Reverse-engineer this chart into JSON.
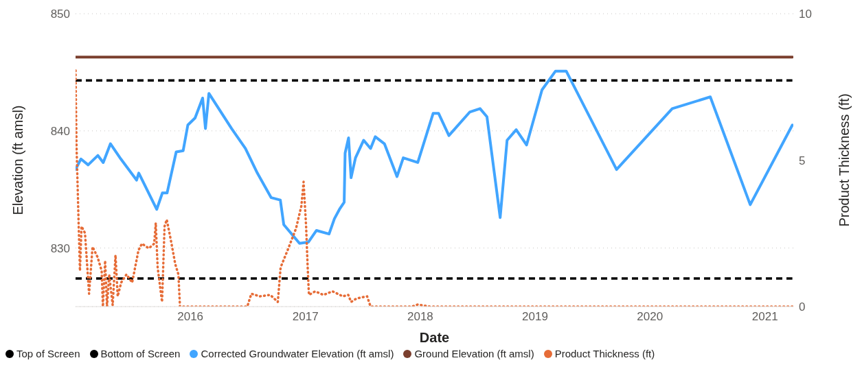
{
  "chart_data": {
    "type": "line",
    "xlabel": "Date",
    "ylabel": "Elevation (ft amsl)",
    "y2label": "Product Thickness (ft)",
    "xlim": [
      "2015-01-01",
      "2021-04-01"
    ],
    "xticks": [
      "2016",
      "2017",
      "2018",
      "2019",
      "2020",
      "2021"
    ],
    "ylim": [
      825,
      850
    ],
    "yticks": [
      830,
      840,
      850
    ],
    "y2lim": [
      0,
      10
    ],
    "y2ticks": [
      0,
      5,
      10
    ],
    "grid": "y",
    "legend": "bottom left",
    "series": [
      {
        "name": "Top of Screen",
        "color": "#000000",
        "line_style": "dashed",
        "x": [
          "2015-01-01",
          "2021-03-29"
        ],
        "values": [
          844.3,
          844.3
        ]
      },
      {
        "name": "Bottom of Screen",
        "color": "#000000",
        "line_style": "dashed",
        "x": [
          "2015-01-01",
          "2021-03-29"
        ],
        "values": [
          827.4,
          827.4
        ]
      },
      {
        "name": "Corrected Groundwater Elevation (ft amsl)",
        "color": "#41a5ff",
        "line_style": "solid",
        "x": [
          "2015-01-01",
          "2015-01-18",
          "2015-02-10",
          "2015-03-13",
          "2015-03-30",
          "2015-04-22",
          "2015-05-25",
          "2015-07-14",
          "2015-07-21",
          "2015-09-16",
          "2015-10-04",
          "2015-10-19",
          "2015-11-17",
          "2015-12-09",
          "2015-12-24",
          "2016-01-16",
          "2016-02-09",
          "2016-02-18",
          "2016-02-29",
          "2016-05-11",
          "2016-06-24",
          "2016-08-01",
          "2016-09-14",
          "2016-10-13",
          "2016-10-24",
          "2016-12-13",
          "2017-01-10",
          "2017-02-05",
          "2017-03-17",
          "2017-04-03",
          "2017-04-19",
          "2017-05-04",
          "2017-05-07",
          "2017-05-18",
          "2017-05-26",
          "2017-06-09",
          "2017-07-05",
          "2017-07-27",
          "2017-08-11",
          "2017-09-09",
          "2017-10-19",
          "2017-11-08",
          "2017-12-24",
          "2018-02-11",
          "2018-02-28",
          "2018-04-02",
          "2018-06-07",
          "2018-07-10",
          "2018-08-01",
          "2018-09-12",
          "2018-10-04",
          "2018-11-02",
          "2018-12-05",
          "2019-01-23",
          "2019-03-07",
          "2019-04-10",
          "2019-09-17",
          "2020-03-12",
          "2020-07-11",
          "2020-11-15",
          "2021-03-29"
        ],
        "values": [
          836.7,
          837.6,
          837.1,
          837.9,
          837.3,
          838.9,
          837.6,
          835.8,
          836.4,
          833.3,
          834.7,
          834.7,
          838.2,
          838.3,
          840.5,
          841.1,
          842.8,
          840.2,
          843.2,
          840.2,
          838.5,
          836.4,
          834.3,
          834.1,
          832.0,
          830.4,
          830.5,
          831.5,
          831.2,
          832.5,
          833.3,
          833.9,
          838.1,
          839.4,
          836.0,
          837.7,
          839.2,
          838.5,
          839.5,
          838.9,
          836.1,
          837.7,
          837.3,
          841.5,
          841.5,
          839.6,
          841.6,
          841.9,
          841.2,
          832.6,
          839.2,
          840.1,
          838.8,
          843.5,
          845.1,
          845.1,
          836.7,
          841.9,
          842.9,
          833.7,
          840.5
        ]
      },
      {
        "name": "Ground Elevation (ft amsl)",
        "color": "#7b3f2e",
        "line_style": "solid",
        "x": [
          "2015-01-01",
          "2021-03-29"
        ],
        "values": [
          846.3,
          846.3
        ]
      },
      {
        "name": "Product Thickness (ft)",
        "color": "#e66c37",
        "line_style": "dotted",
        "axis": "y2",
        "x": [
          "2015-01-01",
          "2015-01-04",
          "2015-01-11",
          "2015-01-15",
          "2015-01-20",
          "2015-01-31",
          "2015-02-13",
          "2015-02-24",
          "2015-03-12",
          "2015-03-25",
          "2015-03-29",
          "2015-04-05",
          "2015-04-11",
          "2015-04-18",
          "2015-04-29",
          "2015-05-08",
          "2015-05-15",
          "2015-05-26",
          "2015-06-12",
          "2015-06-30",
          "2015-07-20",
          "2015-07-31",
          "2015-08-22",
          "2015-09-08",
          "2015-09-13",
          "2015-09-19",
          "2015-10-03",
          "2015-10-11",
          "2015-10-18",
          "2015-10-31",
          "2015-11-14",
          "2015-11-24",
          "2015-11-29",
          "2016-06-30",
          "2016-07-13",
          "2016-08-09",
          "2016-09-11",
          "2016-10-05",
          "2016-10-14",
          "2016-11-05",
          "2016-12-02",
          "2016-12-19",
          "2016-12-26",
          "2017-01-03",
          "2017-01-08",
          "2017-01-12",
          "2017-02-01",
          "2017-02-27",
          "2017-03-28",
          "2017-04-30",
          "2017-05-17",
          "2017-05-26",
          "2017-06-13",
          "2017-07-16",
          "2017-07-27",
          "2017-12-06",
          "2017-12-24",
          "2018-01-31",
          "2021-03-29"
        ],
        "values": [
          8.06,
          5.55,
          2.74,
          1.22,
          2.74,
          2.51,
          0.44,
          2.04,
          1.69,
          1.22,
          0,
          1.57,
          0,
          1.1,
          0.05,
          1.76,
          0.35,
          0.82,
          1.1,
          0.82,
          1.92,
          2.15,
          1.99,
          2.15,
          2.86,
          1.34,
          0.16,
          2.74,
          2.97,
          2.27,
          1.45,
          1.1,
          0,
          0,
          0.44,
          0.35,
          0.4,
          0.16,
          1.34,
          1.92,
          2.67,
          3.44,
          4.26,
          2.74,
          1.34,
          0.4,
          0.52,
          0.4,
          0.52,
          0.35,
          0.4,
          0.16,
          0.28,
          0.35,
          0,
          0,
          0.07,
          0,
          0
        ]
      }
    ]
  }
}
